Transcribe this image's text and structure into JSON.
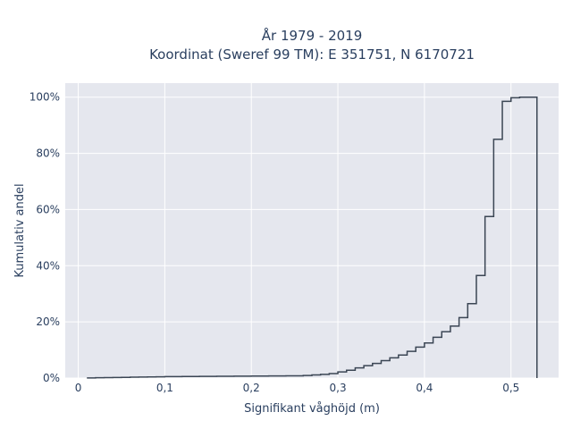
{
  "chart_data": {
    "type": "line",
    "subtype": "cumulative-step",
    "title_lines": [
      "År 1979 - 2019",
      "Koordinat (Sweref 99 TM): E 351751, N 6170721"
    ],
    "xlabel": "Signifikant våghöjd (m)",
    "ylabel": "Kumulativ andel",
    "xlim": [
      -0.015,
      0.555
    ],
    "ylim": [
      0,
      1.05
    ],
    "xticks": [
      0,
      0.1,
      0.2,
      0.3,
      0.4,
      0.5
    ],
    "xtick_labels": [
      "0",
      "0,1",
      "0,2",
      "0,3",
      "0,4",
      "0,5"
    ],
    "yticks": [
      0,
      0.2,
      0.4,
      0.6,
      0.8,
      1.0
    ],
    "ytick_labels": [
      "0%",
      "20%",
      "40%",
      "60%",
      "80%",
      "100%"
    ],
    "grid": true,
    "legend": false,
    "line_color": "#3b4654",
    "plot_background": "#e5e7ee",
    "series": [
      {
        "x": [
          0.01,
          0.02,
          0.03,
          0.04,
          0.05,
          0.06,
          0.07,
          0.08,
          0.09,
          0.1,
          0.11,
          0.12,
          0.13,
          0.14,
          0.15,
          0.16,
          0.17,
          0.18,
          0.19,
          0.2,
          0.21,
          0.22,
          0.23,
          0.24,
          0.25,
          0.26,
          0.27,
          0.28,
          0.29,
          0.3,
          0.31,
          0.32,
          0.33,
          0.34,
          0.35,
          0.36,
          0.37,
          0.38,
          0.39,
          0.4,
          0.41,
          0.42,
          0.43,
          0.44,
          0.45,
          0.46,
          0.47,
          0.48,
          0.49,
          0.5,
          0.51,
          0.52,
          0.53
        ],
        "y": [
          0.0005,
          0.001,
          0.0015,
          0.002,
          0.0025,
          0.003,
          0.0035,
          0.004,
          0.0045,
          0.005,
          0.0052,
          0.0054,
          0.0056,
          0.0058,
          0.006,
          0.0062,
          0.0064,
          0.0066,
          0.0068,
          0.007,
          0.0072,
          0.0074,
          0.0076,
          0.0078,
          0.008,
          0.009,
          0.011,
          0.013,
          0.016,
          0.022,
          0.028,
          0.036,
          0.044,
          0.052,
          0.062,
          0.072,
          0.082,
          0.095,
          0.11,
          0.125,
          0.145,
          0.165,
          0.185,
          0.215,
          0.265,
          0.365,
          0.575,
          0.85,
          0.985,
          0.998,
          1.0,
          1.0,
          0.0
        ]
      }
    ]
  }
}
